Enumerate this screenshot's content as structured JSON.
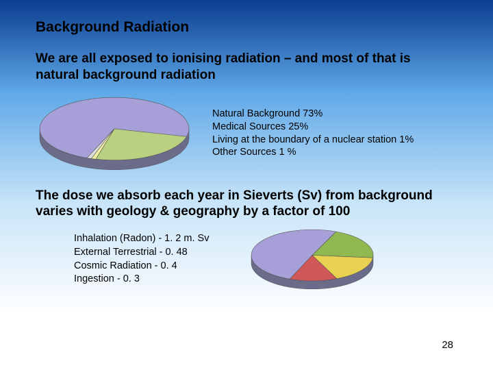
{
  "title": "Background Radiation",
  "subtitle": "We are all exposed to ionising radiation – and most of that is natural background radiation",
  "pie1": {
    "type": "pie",
    "slices": [
      {
        "label": "Natural Background  73%",
        "value": 73,
        "color": "#a7a0d8"
      },
      {
        "label": "Medical Sources  25%",
        "value": 25,
        "color": "#b8d080"
      },
      {
        "label": "Living at the boundary of a nuclear station 1%",
        "value": 1,
        "color": "#f0f0a0"
      },
      {
        "label": "Other Sources 1 %",
        "value": 1,
        "color": "#dcdcdc"
      }
    ],
    "side_color": "#6b6b8a",
    "tilt_ry_ratio": 0.42,
    "depth": 14
  },
  "para2": "The dose we absorb each year in Sieverts (Sv) from background varies with geology & geography by a factor of 100",
  "pie2": {
    "type": "pie",
    "slices": [
      {
        "label": "Inhalation (Radon) - 1. 2 m. Sv",
        "value": 1.2,
        "color": "#a7a0d8"
      },
      {
        "label": "External Terrestrial - 0. 48",
        "value": 0.48,
        "color": "#8fb850"
      },
      {
        "label": "Cosmic Radiation - 0. 4",
        "value": 0.4,
        "color": "#e8d050"
      },
      {
        "label": "Ingestion - 0. 3",
        "value": 0.3,
        "color": "#d05858"
      }
    ],
    "side_color": "#6b6b8a",
    "tilt_ry_ratio": 0.42,
    "depth": 12
  },
  "pagenum": "28"
}
